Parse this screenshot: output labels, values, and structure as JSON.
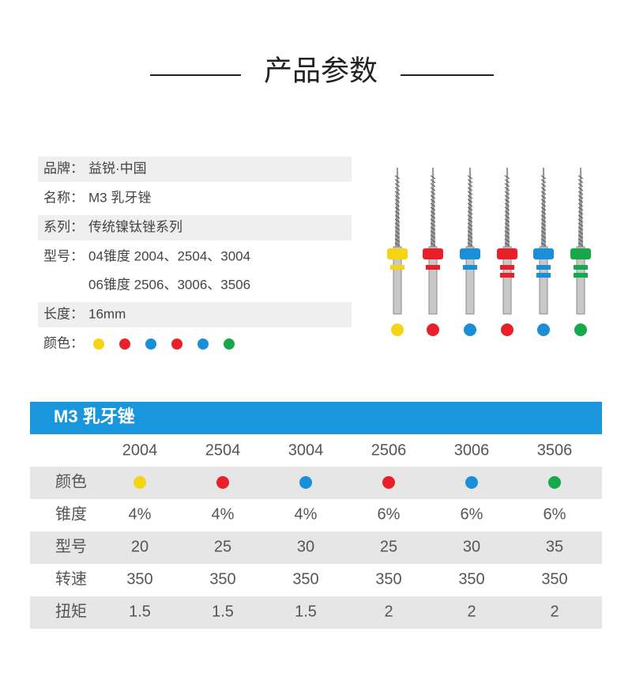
{
  "header": {
    "title": "产品参数"
  },
  "colors": [
    "#f5d315",
    "#e8202a",
    "#1a8fd8",
    "#e8202a",
    "#1a8fd8",
    "#16a84a"
  ],
  "specs": [
    {
      "label": "品牌：",
      "values": [
        "益锐·中国"
      ]
    },
    {
      "label": "名称：",
      "values": [
        "M3 乳牙锉"
      ]
    },
    {
      "label": "系列：",
      "values": [
        "传统镍钛锉系列"
      ]
    },
    {
      "label": "型号：",
      "values": [
        "04锥度 2004、2504、3004",
        "06锥度 2506、3006、3506"
      ]
    },
    {
      "label": "长度：",
      "values": [
        "16mm"
      ]
    },
    {
      "label": "颜色："
    }
  ],
  "table": {
    "title": "M3 乳牙锉",
    "columns": [
      "2004",
      "2504",
      "3004",
      "2506",
      "3006",
      "3506"
    ],
    "rows": [
      {
        "label": "颜色"
      },
      {
        "label": "锥度",
        "cells": [
          "4%",
          "4%",
          "4%",
          "6%",
          "6%",
          "6%"
        ]
      },
      {
        "label": "型号",
        "cells": [
          "20",
          "25",
          "30",
          "25",
          "30",
          "35"
        ]
      },
      {
        "label": "转速",
        "cells": [
          "350",
          "350",
          "350",
          "350",
          "350",
          "350"
        ]
      },
      {
        "label": "扭矩",
        "cells": [
          "1.5",
          "1.5",
          "1.5",
          "2",
          "2",
          "2"
        ]
      }
    ]
  }
}
